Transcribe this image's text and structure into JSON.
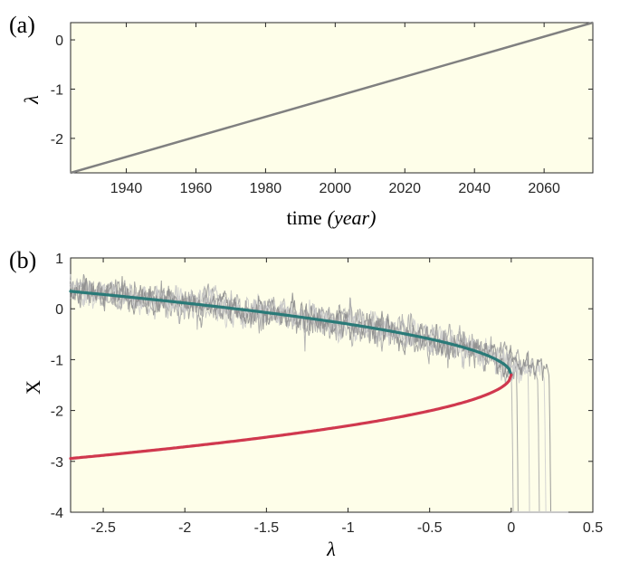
{
  "chart_data": [
    {
      "type": "line",
      "panel_label": "(a)",
      "xlabel": "time",
      "xlabel_unit": "(year)",
      "ylabel": "λ",
      "xlim": [
        1924,
        2074
      ],
      "ylim": [
        -2.7,
        0.35
      ],
      "xticks": [
        1940,
        1960,
        1980,
        2000,
        2020,
        2040,
        2060
      ],
      "xtick_labels": [
        "1940",
        "1960",
        "1980",
        "2000",
        "2020",
        "2040",
        "2060"
      ],
      "yticks": [
        0,
        -1,
        -2
      ],
      "ytick_labels": [
        "0",
        "-1",
        "-2"
      ],
      "grid": false,
      "background": "#fefee9",
      "series": [
        {
          "color": "#808080",
          "x": [
            1924,
            2074
          ],
          "y": [
            -2.7,
            0.35
          ]
        }
      ]
    },
    {
      "type": "line",
      "panel_label": "(b)",
      "xlabel": "λ",
      "ylabel": "X",
      "xlim": [
        -2.7,
        0.5
      ],
      "ylim": [
        -4,
        1
      ],
      "xticks": [
        -2.5,
        -2,
        -1.5,
        -1,
        -0.5,
        0,
        0.5
      ],
      "xtick_labels": [
        "-2.5",
        "-2",
        "-1.5",
        "-1",
        "-0.5",
        "0",
        "0.5"
      ],
      "yticks": [
        1,
        0,
        -1,
        -2,
        -3,
        -4
      ],
      "ytick_labels": [
        "1",
        "0",
        "-1",
        "-2",
        "-3",
        "-4"
      ],
      "grid": false,
      "background": "#fefee9",
      "branches": [
        {
          "kind": "stable",
          "color": "#2a7a78",
          "equation": "X = -1.3 + sqrt(-λ)",
          "x_range": [
            -2.7,
            0
          ]
        },
        {
          "kind": "unstable",
          "color": "#d0384e",
          "equation": "X = -1.3 - sqrt(-λ)",
          "x_range": [
            -2.7,
            0
          ]
        }
      ],
      "noisy_trajectories": {
        "colors": [
          "#b0b0b0",
          "#9a9a9a",
          "#c4c4c4",
          "#a8a8a8",
          "#d0d0d0",
          "#8e8e8e"
        ],
        "tipping_lambda": [
          0.0,
          0.03,
          0.1,
          0.16,
          0.2,
          0.23
        ],
        "final_value": -4
      }
    }
  ]
}
